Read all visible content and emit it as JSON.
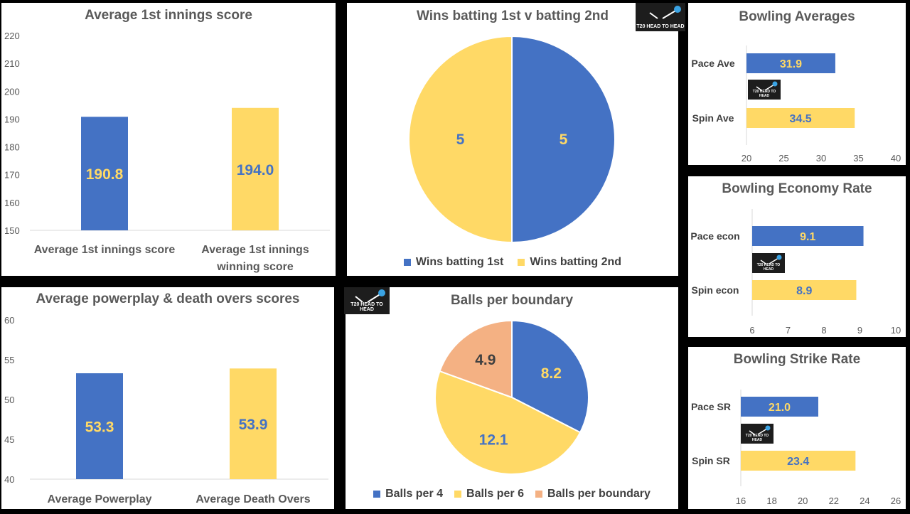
{
  "colors": {
    "blue": "#4472c4",
    "yellow": "#ffd966",
    "peach": "#f4b183",
    "axis_text": "#595959",
    "panel_bg": "#ffffff"
  },
  "logo": {
    "text": "T20 HEAD TO HEAD",
    "icon": "ball-and-bat-icon"
  },
  "chart_data": [
    {
      "id": "avg_first_innings",
      "type": "bar",
      "title": "Average 1st innings score",
      "categories": [
        "Average 1st innings score",
        "Average 1st innings winning score"
      ],
      "category_lines": [
        [
          "Average 1st innings score"
        ],
        [
          "Average 1st innings",
          "winning score"
        ]
      ],
      "values": [
        190.8,
        194.0
      ],
      "labels": [
        "190.8",
        "194.0"
      ],
      "colors": [
        "#4472c4",
        "#ffd966"
      ],
      "label_colors": [
        "#ffd966",
        "#4472c4"
      ],
      "ylim": [
        150,
        220
      ],
      "yticks": [
        150,
        160,
        170,
        180,
        190,
        200,
        210,
        220
      ],
      "grid": false
    },
    {
      "id": "wins_batting",
      "type": "pie",
      "title": "Wins batting 1st v batting 2nd",
      "labels": [
        "Wins batting 1st",
        "Wins batting 2nd"
      ],
      "values": [
        5,
        5
      ],
      "value_labels": [
        "5",
        "5"
      ],
      "colors": [
        "#4472c4",
        "#ffd966"
      ],
      "label_colors": [
        "#ffd966",
        "#4472c4"
      ],
      "legend": "bottom"
    },
    {
      "id": "bowling_averages",
      "type": "bar",
      "orientation": "horizontal",
      "title": "Bowling Averages",
      "categories": [
        "Pace Ave",
        "Spin Ave"
      ],
      "values": [
        31.9,
        34.5
      ],
      "labels": [
        "31.9",
        "34.5"
      ],
      "colors": [
        "#4472c4",
        "#ffd966"
      ],
      "label_colors": [
        "#ffd966",
        "#4472c4"
      ],
      "xlim": [
        20,
        40
      ],
      "xticks": [
        20,
        25,
        30,
        35,
        40
      ]
    },
    {
      "id": "bowling_economy",
      "type": "bar",
      "orientation": "horizontal",
      "title": "Bowling Economy Rate",
      "categories": [
        "Pace econ",
        "Spin econ"
      ],
      "values": [
        9.1,
        8.9
      ],
      "labels": [
        "9.1",
        "8.9"
      ],
      "colors": [
        "#4472c4",
        "#ffd966"
      ],
      "label_colors": [
        "#ffd966",
        "#4472c4"
      ],
      "xlim": [
        6,
        10
      ],
      "xticks": [
        6,
        7,
        8,
        9,
        10
      ]
    },
    {
      "id": "powerplay_death",
      "type": "bar",
      "title": "Average powerplay & death overs scores",
      "categories": [
        "Average Powerplay",
        "Average Death Overs"
      ],
      "category_lines": [
        [
          "Average Powerplay"
        ],
        [
          "Average Death Overs"
        ]
      ],
      "values": [
        53.3,
        53.9
      ],
      "labels": [
        "53.3",
        "53.9"
      ],
      "colors": [
        "#4472c4",
        "#ffd966"
      ],
      "label_colors": [
        "#ffd966",
        "#4472c4"
      ],
      "ylim": [
        40,
        60
      ],
      "yticks": [
        40,
        45,
        50,
        55,
        60
      ],
      "grid": false
    },
    {
      "id": "balls_per_boundary",
      "type": "pie",
      "title": "Balls per boundary",
      "labels": [
        "Balls per 4",
        "Balls per 6",
        "Balls per boundary"
      ],
      "values": [
        8.2,
        12.1,
        4.9
      ],
      "value_labels": [
        "8.2",
        "12.1",
        "4.9"
      ],
      "colors": [
        "#4472c4",
        "#ffd966",
        "#f4b183"
      ],
      "label_colors": [
        "#ffd966",
        "#4472c4",
        "#404040"
      ],
      "legend": "bottom"
    },
    {
      "id": "bowling_strike_rate",
      "type": "bar",
      "orientation": "horizontal",
      "title": "Bowling Strike Rate",
      "categories": [
        "Pace SR",
        "Spin SR"
      ],
      "values": [
        21.0,
        23.4
      ],
      "labels": [
        "21.0",
        "23.4"
      ],
      "colors": [
        "#4472c4",
        "#ffd966"
      ],
      "label_colors": [
        "#ffd966",
        "#4472c4"
      ],
      "xlim": [
        16,
        26
      ],
      "xticks": [
        16,
        18,
        20,
        22,
        24,
        26
      ]
    }
  ]
}
